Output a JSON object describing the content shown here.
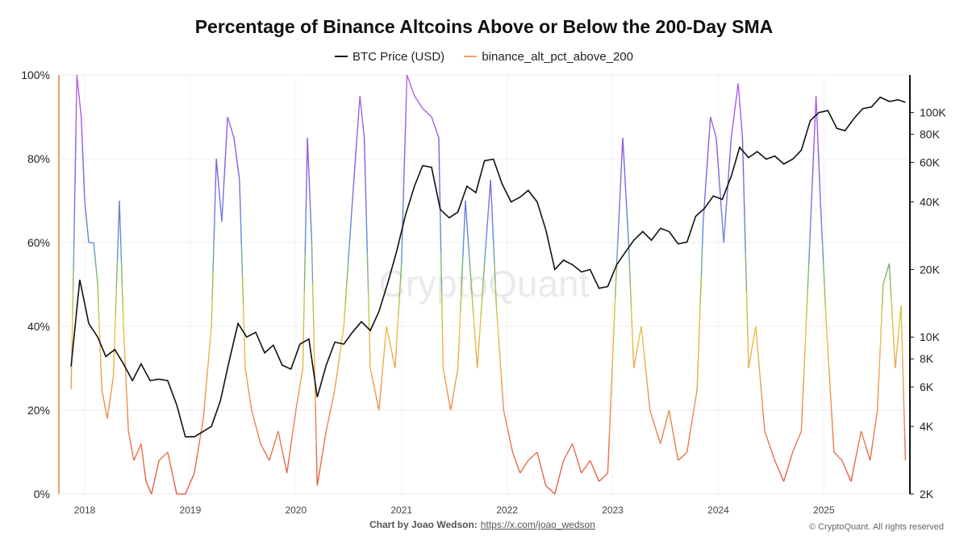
{
  "chart_data": {
    "type": "line",
    "title": "Percentage of Binance Altcoins Above or Below the 200-Day SMA",
    "legend_position": "top-center",
    "grid": true,
    "watermark": "CryptoQuant",
    "x_ticks": [
      "2018",
      "2019",
      "2020",
      "2021",
      "2022",
      "2023",
      "2024",
      "2025"
    ],
    "y_left": {
      "ticks": [
        "0%",
        "20%",
        "40%",
        "60%",
        "80%",
        "100%"
      ],
      "range": [
        0,
        100
      ]
    },
    "y_right": {
      "scale": "log",
      "ticks": [
        "2K",
        "4K",
        "6K",
        "8K",
        "10K",
        "20K",
        "40K",
        "60K",
        "80K",
        "100K"
      ],
      "range": [
        2000,
        147000
      ]
    },
    "series": [
      {
        "name": "BTC Price (USD)",
        "color": "#111111",
        "axis": "right",
        "points": [
          [
            "2017-11-15",
            7400
          ],
          [
            "2017-12-15",
            18000
          ],
          [
            "2018-01-15",
            11500
          ],
          [
            "2018-02-15",
            10000
          ],
          [
            "2018-03-15",
            8200
          ],
          [
            "2018-04-15",
            8800
          ],
          [
            "2018-05-15",
            7600
          ],
          [
            "2018-06-15",
            6400
          ],
          [
            "2018-07-15",
            7600
          ],
          [
            "2018-08-15",
            6400
          ],
          [
            "2018-09-15",
            6500
          ],
          [
            "2018-10-15",
            6400
          ],
          [
            "2018-11-15",
            5000
          ],
          [
            "2018-12-15",
            3600
          ],
          [
            "2019-01-15",
            3600
          ],
          [
            "2019-02-15",
            3800
          ],
          [
            "2019-03-15",
            4000
          ],
          [
            "2019-04-15",
            5200
          ],
          [
            "2019-05-15",
            7800
          ],
          [
            "2019-06-15",
            11500
          ],
          [
            "2019-07-15",
            10000
          ],
          [
            "2019-08-15",
            10500
          ],
          [
            "2019-09-15",
            8500
          ],
          [
            "2019-10-15",
            9200
          ],
          [
            "2019-11-15",
            7500
          ],
          [
            "2019-12-15",
            7200
          ],
          [
            "2020-01-15",
            9300
          ],
          [
            "2020-02-15",
            9800
          ],
          [
            "2020-03-15",
            5400
          ],
          [
            "2020-04-15",
            7500
          ],
          [
            "2020-05-15",
            9500
          ],
          [
            "2020-06-15",
            9300
          ],
          [
            "2020-07-15",
            10500
          ],
          [
            "2020-08-15",
            11700
          ],
          [
            "2020-09-15",
            10700
          ],
          [
            "2020-10-15",
            13000
          ],
          [
            "2020-11-15",
            17500
          ],
          [
            "2020-12-15",
            24000
          ],
          [
            "2021-01-15",
            35000
          ],
          [
            "2021-02-15",
            47000
          ],
          [
            "2021-03-15",
            58000
          ],
          [
            "2021-04-15",
            57000
          ],
          [
            "2021-05-15",
            37000
          ],
          [
            "2021-06-15",
            34000
          ],
          [
            "2021-07-15",
            36000
          ],
          [
            "2021-08-15",
            47000
          ],
          [
            "2021-09-15",
            44000
          ],
          [
            "2021-10-15",
            61000
          ],
          [
            "2021-11-15",
            62000
          ],
          [
            "2021-12-15",
            48000
          ],
          [
            "2022-01-15",
            40000
          ],
          [
            "2022-02-15",
            42000
          ],
          [
            "2022-03-15",
            45000
          ],
          [
            "2022-04-15",
            40000
          ],
          [
            "2022-05-15",
            30000
          ],
          [
            "2022-06-15",
            20000
          ],
          [
            "2022-07-15",
            22000
          ],
          [
            "2022-08-15",
            21000
          ],
          [
            "2022-09-15",
            19500
          ],
          [
            "2022-10-15",
            20000
          ],
          [
            "2022-11-15",
            16500
          ],
          [
            "2022-12-15",
            16800
          ],
          [
            "2023-01-15",
            21000
          ],
          [
            "2023-02-15",
            24000
          ],
          [
            "2023-03-15",
            27000
          ],
          [
            "2023-04-15",
            29500
          ],
          [
            "2023-05-15",
            27000
          ],
          [
            "2023-06-15",
            30500
          ],
          [
            "2023-07-15",
            29500
          ],
          [
            "2023-08-15",
            26000
          ],
          [
            "2023-09-15",
            26500
          ],
          [
            "2023-10-15",
            34500
          ],
          [
            "2023-11-15",
            37500
          ],
          [
            "2023-12-15",
            42500
          ],
          [
            "2024-01-15",
            41000
          ],
          [
            "2024-02-15",
            52000
          ],
          [
            "2024-03-15",
            70000
          ],
          [
            "2024-04-15",
            63000
          ],
          [
            "2024-05-15",
            67000
          ],
          [
            "2024-06-15",
            62000
          ],
          [
            "2024-07-15",
            64000
          ],
          [
            "2024-08-15",
            59000
          ],
          [
            "2024-09-15",
            62000
          ],
          [
            "2024-10-15",
            68000
          ],
          [
            "2024-11-15",
            92000
          ],
          [
            "2024-12-15",
            100000
          ],
          [
            "2025-01-15",
            102000
          ],
          [
            "2025-02-15",
            85000
          ],
          [
            "2025-03-15",
            83000
          ],
          [
            "2025-04-15",
            94000
          ],
          [
            "2025-05-15",
            104000
          ],
          [
            "2025-06-15",
            106000
          ],
          [
            "2025-07-15",
            117000
          ],
          [
            "2025-08-15",
            112000
          ],
          [
            "2025-09-15",
            114000
          ],
          [
            "2025-10-10",
            111000
          ]
        ]
      },
      {
        "name": "binance_alt_pct_above_200",
        "color": "#f0a070",
        "axis": "left",
        "colors": {
          "0": "#e0573f",
          "20": "#ef8a4e",
          "40": "#e8c24a",
          "50": "#8cc14a",
          "60": "#5c8fd9",
          "80": "#8a5ae0",
          "100": "#b462ea"
        },
        "points": [
          [
            "2017-11-15",
            25
          ],
          [
            "2017-11-25",
            60
          ],
          [
            "2017-12-05",
            100
          ],
          [
            "2017-12-20",
            90
          ],
          [
            "2018-01-01",
            70
          ],
          [
            "2018-01-15",
            60
          ],
          [
            "2018-02-01",
            60
          ],
          [
            "2018-02-15",
            50
          ],
          [
            "2018-03-01",
            25
          ],
          [
            "2018-03-20",
            18
          ],
          [
            "2018-04-10",
            28
          ],
          [
            "2018-05-01",
            70
          ],
          [
            "2018-05-15",
            40
          ],
          [
            "2018-06-01",
            15
          ],
          [
            "2018-06-20",
            8
          ],
          [
            "2018-07-15",
            12
          ],
          [
            "2018-08-01",
            3
          ],
          [
            "2018-08-20",
            0
          ],
          [
            "2018-09-15",
            8
          ],
          [
            "2018-10-15",
            10
          ],
          [
            "2018-11-15",
            0
          ],
          [
            "2018-12-15",
            0
          ],
          [
            "2019-01-15",
            5
          ],
          [
            "2019-02-15",
            18
          ],
          [
            "2019-03-15",
            40
          ],
          [
            "2019-04-01",
            80
          ],
          [
            "2019-04-20",
            65
          ],
          [
            "2019-05-10",
            90
          ],
          [
            "2019-06-01",
            85
          ],
          [
            "2019-06-20",
            75
          ],
          [
            "2019-07-10",
            30
          ],
          [
            "2019-08-01",
            20
          ],
          [
            "2019-09-01",
            12
          ],
          [
            "2019-10-01",
            8
          ],
          [
            "2019-11-01",
            15
          ],
          [
            "2019-12-01",
            5
          ],
          [
            "2020-01-01",
            20
          ],
          [
            "2020-01-25",
            30
          ],
          [
            "2020-02-10",
            85
          ],
          [
            "2020-02-25",
            60
          ],
          [
            "2020-03-15",
            2
          ],
          [
            "2020-04-15",
            15
          ],
          [
            "2020-05-15",
            25
          ],
          [
            "2020-06-15",
            40
          ],
          [
            "2020-07-15",
            70
          ],
          [
            "2020-08-10",
            95
          ],
          [
            "2020-08-25",
            85
          ],
          [
            "2020-09-15",
            30
          ],
          [
            "2020-10-15",
            20
          ],
          [
            "2020-11-10",
            40
          ],
          [
            "2020-12-10",
            30
          ],
          [
            "2021-01-01",
            55
          ],
          [
            "2021-01-20",
            100
          ],
          [
            "2021-02-15",
            95
          ],
          [
            "2021-03-15",
            92
          ],
          [
            "2021-04-15",
            90
          ],
          [
            "2021-05-10",
            85
          ],
          [
            "2021-05-25",
            30
          ],
          [
            "2021-06-20",
            20
          ],
          [
            "2021-07-15",
            30
          ],
          [
            "2021-08-10",
            70
          ],
          [
            "2021-08-25",
            55
          ],
          [
            "2021-09-20",
            30
          ],
          [
            "2021-10-15",
            55
          ],
          [
            "2021-11-05",
            75
          ],
          [
            "2021-11-25",
            45
          ],
          [
            "2021-12-20",
            20
          ],
          [
            "2022-01-20",
            10
          ],
          [
            "2022-02-15",
            5
          ],
          [
            "2022-03-15",
            8
          ],
          [
            "2022-04-15",
            10
          ],
          [
            "2022-05-15",
            2
          ],
          [
            "2022-06-15",
            0
          ],
          [
            "2022-07-15",
            8
          ],
          [
            "2022-08-15",
            12
          ],
          [
            "2022-09-15",
            5
          ],
          [
            "2022-10-15",
            8
          ],
          [
            "2022-11-15",
            3
          ],
          [
            "2022-12-15",
            5
          ],
          [
            "2023-01-15",
            55
          ],
          [
            "2023-02-05",
            85
          ],
          [
            "2023-02-25",
            60
          ],
          [
            "2023-03-15",
            30
          ],
          [
            "2023-04-10",
            40
          ],
          [
            "2023-05-10",
            20
          ],
          [
            "2023-06-15",
            12
          ],
          [
            "2023-07-15",
            20
          ],
          [
            "2023-08-15",
            8
          ],
          [
            "2023-09-15",
            10
          ],
          [
            "2023-10-20",
            25
          ],
          [
            "2023-11-10",
            65
          ],
          [
            "2023-12-05",
            90
          ],
          [
            "2023-12-25",
            85
          ],
          [
            "2024-01-20",
            60
          ],
          [
            "2024-02-15",
            85
          ],
          [
            "2024-03-10",
            98
          ],
          [
            "2024-03-25",
            85
          ],
          [
            "2024-04-15",
            30
          ],
          [
            "2024-05-10",
            40
          ],
          [
            "2024-06-10",
            15
          ],
          [
            "2024-07-15",
            8
          ],
          [
            "2024-08-15",
            3
          ],
          [
            "2024-09-15",
            10
          ],
          [
            "2024-10-15",
            15
          ],
          [
            "2024-11-10",
            55
          ],
          [
            "2024-12-05",
            95
          ],
          [
            "2024-12-20",
            70
          ],
          [
            "2025-01-10",
            40
          ],
          [
            "2025-02-05",
            10
          ],
          [
            "2025-03-05",
            8
          ],
          [
            "2025-04-05",
            3
          ],
          [
            "2025-05-10",
            15
          ],
          [
            "2025-06-10",
            8
          ],
          [
            "2025-07-05",
            20
          ],
          [
            "2025-07-25",
            50
          ],
          [
            "2025-08-15",
            55
          ],
          [
            "2025-09-05",
            30
          ],
          [
            "2025-09-25",
            45
          ],
          [
            "2025-10-10",
            8
          ]
        ]
      }
    ]
  },
  "footer": {
    "credit_label": "Chart by Joao Wedson:",
    "credit_link": "https://x.com/joao_wedson",
    "copyright": "© CryptoQuant. All rights reserved"
  }
}
